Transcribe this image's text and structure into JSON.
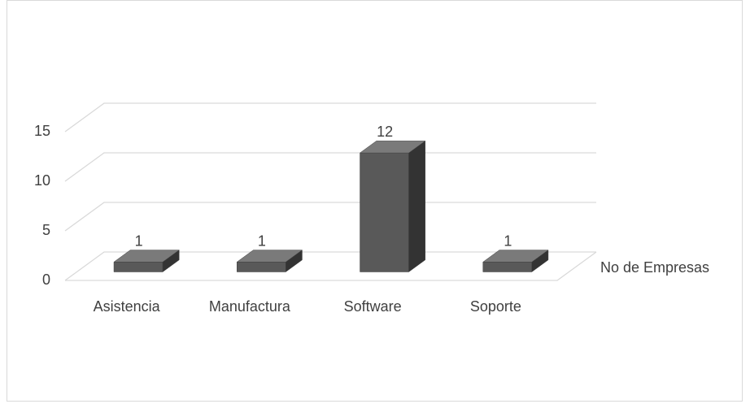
{
  "chart_data": {
    "type": "bar3d",
    "categories": [
      "Asistencia",
      "Manufactura",
      "Software",
      "Soporte"
    ],
    "series": [
      {
        "name": "No de Empresas",
        "color": "#595959",
        "values": [
          1,
          1,
          12,
          1
        ]
      }
    ],
    "ylim": [
      0,
      15
    ],
    "yticks": [
      0,
      5,
      10,
      15
    ],
    "grid": true,
    "legend": "right"
  }
}
